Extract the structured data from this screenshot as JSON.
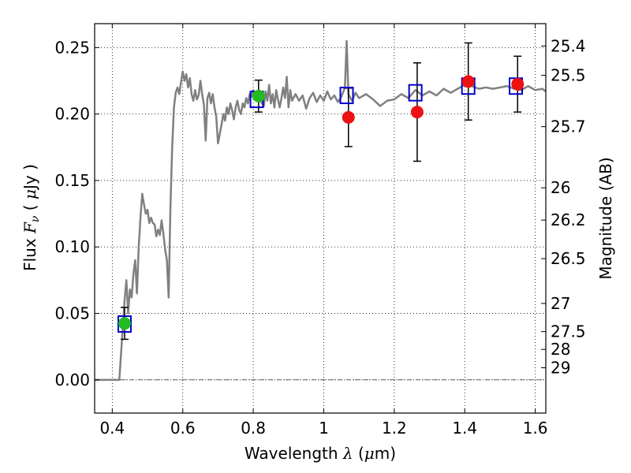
{
  "chart_data": {
    "type": "scatter",
    "xlabel": "Wavelength  λ (μm)",
    "ylabel": "Flux  Fν  ( μJy )",
    "y2label": "Magnitude (AB)",
    "xlim": [
      0.35,
      1.63
    ],
    "ylim": [
      -0.025,
      0.268
    ],
    "grid": true,
    "x_ticks": [
      0.4,
      0.6,
      0.8,
      1.0,
      1.2,
      1.4,
      1.6
    ],
    "x_tick_labels": [
      "0.4",
      "0.6",
      "0.8",
      "1",
      "1.2",
      "1.4",
      "1.6"
    ],
    "y_ticks": [
      0.0,
      0.05,
      0.1,
      0.15,
      0.2,
      0.25
    ],
    "y_tick_labels": [
      "0.00",
      "0.05",
      "0.10",
      "0.15",
      "0.20",
      "0.25"
    ],
    "magnitude_ticks": [
      {
        "label": "25.4",
        "flux": 0.2512
      },
      {
        "label": "25.5",
        "flux": 0.2291
      },
      {
        "label": "25.7",
        "flux": 0.1905
      },
      {
        "label": "26",
        "flux": 0.1445
      },
      {
        "label": "26.2",
        "flux": 0.1202
      },
      {
        "label": "26.5",
        "flux": 0.0912
      },
      {
        "label": "27",
        "flux": 0.0575
      },
      {
        "label": "27.5",
        "flux": 0.0363
      },
      {
        "label": "28",
        "flux": 0.0229
      },
      {
        "label": "29",
        "flux": 0.0091
      }
    ],
    "zero_line": 0,
    "series": [
      {
        "kind": "model_spectrum",
        "color": "#808080",
        "points": [
          [
            0.35,
            0.0
          ],
          [
            0.415,
            0.0
          ],
          [
            0.42,
            0.0
          ],
          [
            0.43,
            0.04
          ],
          [
            0.435,
            0.06
          ],
          [
            0.44,
            0.075
          ],
          [
            0.445,
            0.05
          ],
          [
            0.45,
            0.068
          ],
          [
            0.455,
            0.062
          ],
          [
            0.46,
            0.08
          ],
          [
            0.465,
            0.09
          ],
          [
            0.47,
            0.065
          ],
          [
            0.475,
            0.1
          ],
          [
            0.48,
            0.122
          ],
          [
            0.485,
            0.14
          ],
          [
            0.49,
            0.132
          ],
          [
            0.495,
            0.125
          ],
          [
            0.5,
            0.128
          ],
          [
            0.505,
            0.118
          ],
          [
            0.51,
            0.122
          ],
          [
            0.515,
            0.118
          ],
          [
            0.52,
            0.117
          ],
          [
            0.525,
            0.108
          ],
          [
            0.53,
            0.113
          ],
          [
            0.535,
            0.109
          ],
          [
            0.54,
            0.12
          ],
          [
            0.545,
            0.11
          ],
          [
            0.55,
            0.098
          ],
          [
            0.555,
            0.09
          ],
          [
            0.56,
            0.062
          ],
          [
            0.565,
            0.13
          ],
          [
            0.57,
            0.175
          ],
          [
            0.575,
            0.205
          ],
          [
            0.58,
            0.216
          ],
          [
            0.585,
            0.22
          ],
          [
            0.59,
            0.215
          ],
          [
            0.595,
            0.224
          ],
          [
            0.6,
            0.232
          ],
          [
            0.605,
            0.225
          ],
          [
            0.61,
            0.23
          ],
          [
            0.615,
            0.22
          ],
          [
            0.62,
            0.227
          ],
          [
            0.625,
            0.215
          ],
          [
            0.63,
            0.21
          ],
          [
            0.635,
            0.218
          ],
          [
            0.64,
            0.211
          ],
          [
            0.645,
            0.214
          ],
          [
            0.65,
            0.225
          ],
          [
            0.655,
            0.215
          ],
          [
            0.66,
            0.207
          ],
          [
            0.665,
            0.18
          ],
          [
            0.67,
            0.212
          ],
          [
            0.675,
            0.216
          ],
          [
            0.68,
            0.208
          ],
          [
            0.685,
            0.215
          ],
          [
            0.69,
            0.205
          ],
          [
            0.695,
            0.198
          ],
          [
            0.7,
            0.178
          ],
          [
            0.705,
            0.185
          ],
          [
            0.71,
            0.192
          ],
          [
            0.715,
            0.2
          ],
          [
            0.72,
            0.195
          ],
          [
            0.725,
            0.205
          ],
          [
            0.73,
            0.2
          ],
          [
            0.735,
            0.208
          ],
          [
            0.74,
            0.203
          ],
          [
            0.745,
            0.196
          ],
          [
            0.75,
            0.205
          ],
          [
            0.755,
            0.21
          ],
          [
            0.76,
            0.203
          ],
          [
            0.765,
            0.2
          ],
          [
            0.77,
            0.208
          ],
          [
            0.775,
            0.205
          ],
          [
            0.78,
            0.212
          ],
          [
            0.785,
            0.208
          ],
          [
            0.79,
            0.215
          ],
          [
            0.795,
            0.213
          ],
          [
            0.8,
            0.218
          ],
          [
            0.81,
            0.212
          ],
          [
            0.82,
            0.21
          ],
          [
            0.83,
            0.206
          ],
          [
            0.835,
            0.217
          ],
          [
            0.84,
            0.21
          ],
          [
            0.845,
            0.222
          ],
          [
            0.85,
            0.208
          ],
          [
            0.855,
            0.215
          ],
          [
            0.86,
            0.205
          ],
          [
            0.865,
            0.218
          ],
          [
            0.87,
            0.211
          ],
          [
            0.875,
            0.205
          ],
          [
            0.88,
            0.212
          ],
          [
            0.885,
            0.22
          ],
          [
            0.89,
            0.212
          ],
          [
            0.895,
            0.228
          ],
          [
            0.9,
            0.205
          ],
          [
            0.905,
            0.218
          ],
          [
            0.91,
            0.21
          ],
          [
            0.92,
            0.215
          ],
          [
            0.93,
            0.21
          ],
          [
            0.94,
            0.214
          ],
          [
            0.95,
            0.204
          ],
          [
            0.96,
            0.212
          ],
          [
            0.97,
            0.216
          ],
          [
            0.98,
            0.209
          ],
          [
            0.99,
            0.214
          ],
          [
            1.0,
            0.21
          ],
          [
            1.01,
            0.217
          ],
          [
            1.02,
            0.211
          ],
          [
            1.03,
            0.214
          ],
          [
            1.04,
            0.209
          ],
          [
            1.05,
            0.213
          ],
          [
            1.06,
            0.22
          ],
          [
            1.065,
            0.255
          ],
          [
            1.07,
            0.215
          ],
          [
            1.08,
            0.21
          ],
          [
            1.09,
            0.216
          ],
          [
            1.1,
            0.212
          ],
          [
            1.12,
            0.215
          ],
          [
            1.14,
            0.211
          ],
          [
            1.16,
            0.206
          ],
          [
            1.18,
            0.21
          ],
          [
            1.2,
            0.211
          ],
          [
            1.22,
            0.215
          ],
          [
            1.24,
            0.212
          ],
          [
            1.26,
            0.218
          ],
          [
            1.28,
            0.214
          ],
          [
            1.3,
            0.217
          ],
          [
            1.32,
            0.214
          ],
          [
            1.34,
            0.219
          ],
          [
            1.36,
            0.216
          ],
          [
            1.38,
            0.219
          ],
          [
            1.4,
            0.222
          ],
          [
            1.42,
            0.221
          ],
          [
            1.44,
            0.219
          ],
          [
            1.46,
            0.22
          ],
          [
            1.48,
            0.219
          ],
          [
            1.5,
            0.22
          ],
          [
            1.52,
            0.221
          ],
          [
            1.54,
            0.219
          ],
          [
            1.56,
            0.218
          ],
          [
            1.58,
            0.221
          ],
          [
            1.6,
            0.218
          ],
          [
            1.62,
            0.219
          ],
          [
            1.63,
            0.217
          ]
        ]
      },
      {
        "kind": "model_photometry",
        "marker": "open-square",
        "color": "#0000cc",
        "points": [
          {
            "x": 0.435,
            "y": 0.042
          },
          {
            "x": 0.81,
            "y": 0.211
          },
          {
            "x": 1.065,
            "y": 0.214
          },
          {
            "x": 1.26,
            "y": 0.216
          },
          {
            "x": 1.41,
            "y": 0.221
          },
          {
            "x": 1.545,
            "y": 0.221
          }
        ]
      },
      {
        "kind": "observed_optical",
        "marker": "filled-circle",
        "color": "#22bb22",
        "points": [
          {
            "x": 0.435,
            "y": 0.0425,
            "err": 0.012
          },
          {
            "x": 0.815,
            "y": 0.2135,
            "err": 0.012
          }
        ]
      },
      {
        "kind": "observed_nir",
        "marker": "filled-circle",
        "color": "#ee1111",
        "points": [
          {
            "x": 1.07,
            "y": 0.1975,
            "err": 0.022
          },
          {
            "x": 1.265,
            "y": 0.2015,
            "err": 0.037
          },
          {
            "x": 1.41,
            "y": 0.2245,
            "err": 0.029
          },
          {
            "x": 1.55,
            "y": 0.2225,
            "err": 0.021
          }
        ]
      }
    ]
  }
}
